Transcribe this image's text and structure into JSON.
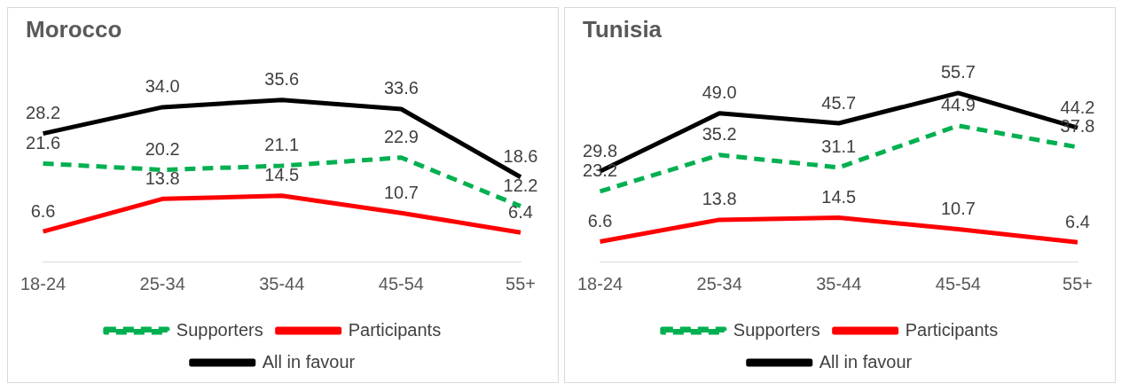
{
  "chart_data": [
    {
      "type": "line",
      "title": "Morocco",
      "categories": [
        "18-24",
        "25-34",
        "35-44",
        "45-54",
        "55+"
      ],
      "series": [
        {
          "name": "Supporters",
          "color": "#00b050",
          "values": [
            21.6,
            20.2,
            21.1,
            22.9,
            12.2
          ],
          "value_labels": [
            "21.6",
            "20.2",
            "21.1",
            "22.9",
            "12.2"
          ],
          "line_style": "dashed"
        },
        {
          "name": "Participants",
          "color": "#ff0000",
          "values": [
            6.6,
            13.8,
            14.5,
            10.7,
            6.4
          ],
          "value_labels": [
            "6.6",
            "13.8",
            "14.5",
            "10.7",
            "6.4"
          ]
        },
        {
          "name": "All in favour",
          "color": "#000000",
          "values": [
            28.2,
            34.0,
            35.6,
            33.6,
            18.6
          ],
          "value_labels": [
            "28.2",
            "34.0",
            "35.6",
            "33.6",
            "18.6"
          ]
        }
      ],
      "legend": "bottom",
      "grid": false,
      "marker": "none",
      "tick_labels": "x"
    },
    {
      "type": "line",
      "title": "Tunisia",
      "categories": [
        "18-24",
        "25-34",
        "35-44",
        "45-54",
        "55+"
      ],
      "series": [
        {
          "name": "Supporters",
          "color": "#00b050",
          "values": [
            23.2,
            35.2,
            31.1,
            44.9,
            37.8
          ],
          "value_labels": [
            "23.2",
            "35.2",
            "31.1",
            "44.9",
            "37.8"
          ],
          "line_style": "dashed"
        },
        {
          "name": "Participants",
          "color": "#ff0000",
          "values": [
            6.6,
            13.8,
            14.5,
            10.7,
            6.4
          ],
          "value_labels": [
            "6.6",
            "13.8",
            "14.5",
            "10.7",
            "6.4"
          ]
        },
        {
          "name": "All in favour",
          "color": "#000000",
          "values": [
            29.8,
            49.0,
            45.7,
            55.7,
            44.2
          ],
          "value_labels": [
            "29.8",
            "49.0",
            "45.7",
            "55.7",
            "44.2"
          ]
        }
      ],
      "legend": "bottom",
      "grid": false,
      "marker": "none",
      "tick_labels": "x"
    }
  ]
}
